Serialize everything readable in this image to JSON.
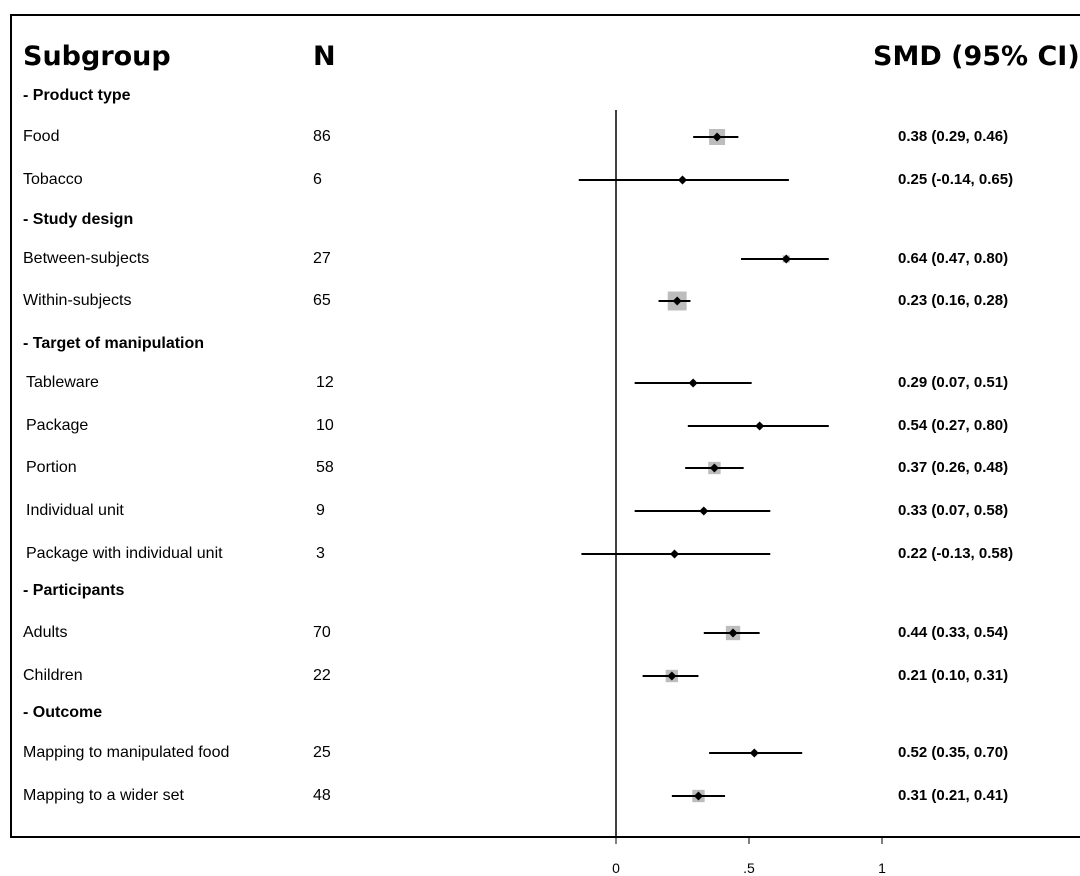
{
  "headers": {
    "subgroup": "Subgroup",
    "n": "N",
    "smd": "SMD (95% CI)"
  },
  "chart_data": {
    "type": "forest",
    "xlim": [
      0,
      1
    ],
    "ticks": [
      {
        "value": 0,
        "label": "0"
      },
      {
        "value": 0.5,
        "label": ".5"
      },
      {
        "value": 1,
        "label": "1"
      }
    ],
    "groups": [
      {
        "title": "- Product type",
        "rows": [
          {
            "label": "Food",
            "n": "86",
            "est": 0.38,
            "lo": 0.29,
            "hi": 0.46,
            "ci_text": "0.38 (0.29, 0.46)",
            "weight": 1.0
          },
          {
            "label": "Tobacco",
            "n": "6",
            "est": 0.25,
            "lo": -0.14,
            "hi": 0.65,
            "ci_text": "0.25 (-0.14, 0.65)",
            "weight": 0.1
          }
        ]
      },
      {
        "title": "- Study design",
        "rows": [
          {
            "label": "Between-subjects",
            "n": "27",
            "est": 0.64,
            "lo": 0.47,
            "hi": 0.8,
            "ci_text": "0.64 (0.47, 0.80)",
            "weight": 0.2
          },
          {
            "label": "Within-subjects",
            "n": "65",
            "est": 0.23,
            "lo": 0.16,
            "hi": 0.28,
            "ci_text": "0.23 (0.16, 0.28)",
            "weight": 1.4
          }
        ]
      },
      {
        "title": "- Target of manipulation",
        "rows": [
          {
            "label": "Tableware",
            "n": "12",
            "est": 0.29,
            "lo": 0.07,
            "hi": 0.51,
            "ci_text": "0.29 (0.07, 0.51)",
            "weight": 0.1
          },
          {
            "label": "Package",
            "n": "10",
            "est": 0.54,
            "lo": 0.27,
            "hi": 0.8,
            "ci_text": "0.54 (0.27, 0.80)",
            "weight": 0.1
          },
          {
            "label": "Portion",
            "n": "58",
            "est": 0.37,
            "lo": 0.26,
            "hi": 0.48,
            "ci_text": "0.37 (0.26, 0.48)",
            "weight": 0.6
          },
          {
            "label": "Individual unit",
            "n": "9",
            "est": 0.33,
            "lo": 0.07,
            "hi": 0.58,
            "ci_text": "0.33 (0.07, 0.58)",
            "weight": 0.1
          },
          {
            "label": "Package with individual unit",
            "n": "3",
            "est": 0.22,
            "lo": -0.13,
            "hi": 0.58,
            "ci_text": "0.22 (-0.13, 0.58)",
            "weight": 0.05
          }
        ]
      },
      {
        "title": "- Participants",
        "rows": [
          {
            "label": "Adults",
            "n": "70",
            "est": 0.44,
            "lo": 0.33,
            "hi": 0.54,
            "ci_text": "0.44 (0.33, 0.54)",
            "weight": 0.8
          },
          {
            "label": "Children",
            "n": "22",
            "est": 0.21,
            "lo": 0.1,
            "hi": 0.31,
            "ci_text": "0.21 (0.10, 0.31)",
            "weight": 0.6
          }
        ]
      },
      {
        "title": "- Outcome",
        "rows": [
          {
            "label": "Mapping to manipulated food",
            "n": "25",
            "est": 0.52,
            "lo": 0.35,
            "hi": 0.7,
            "ci_text": "0.52 (0.35, 0.70)",
            "weight": 0.1
          },
          {
            "label": "Mapping to a wider set",
            "n": "48",
            "est": 0.31,
            "lo": 0.21,
            "hi": 0.41,
            "ci_text": "0.31 (0.21, 0.41)",
            "weight": 0.6
          }
        ]
      }
    ]
  }
}
